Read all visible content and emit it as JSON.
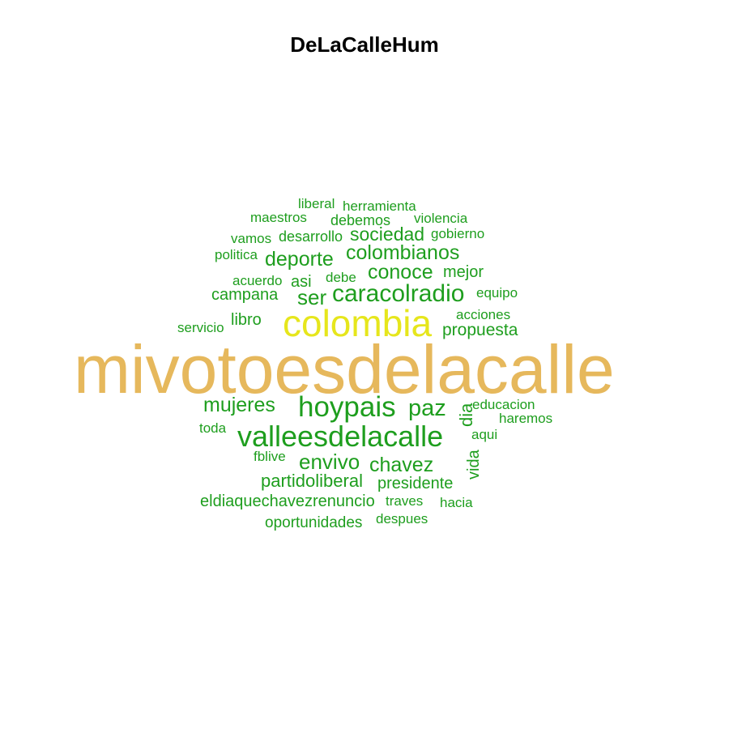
{
  "title": "DeLaCalleHum",
  "words": {
    "mivotoesdelacalle": "mivotoesdelacalle",
    "colombia": "colombia",
    "hoypais": "hoypais",
    "valleesdelacalle": "valleesdelacalle",
    "caracolradio": "caracolradio",
    "colombianos": "colombianos",
    "deporte": "deporte",
    "conoce": "conoce",
    "envivo": "envivo",
    "chavez": "chavez",
    "mujeres": "mujeres",
    "paz": "paz",
    "ser": "ser",
    "sociedad": "sociedad",
    "propuesta": "propuesta",
    "partidoliberal": "partidoliberal",
    "presidente": "presidente",
    "eldiaquechavezrenuncio": "eldiaquechavezrenuncio",
    "oportunidades": "oportunidades",
    "dia": "dia",
    "vida": "vida",
    "liberal": "liberal",
    "herramienta": "herramienta",
    "maestros": "maestros",
    "debemos": "debemos",
    "violencia": "violencia",
    "vamos": "vamos",
    "desarrollo": "desarrollo",
    "gobierno": "gobierno",
    "politica": "politica",
    "mejor": "mejor",
    "acuerdo": "acuerdo",
    "asi": "asi",
    "debe": "debe",
    "campana": "campana",
    "equipo": "equipo",
    "servicio": "servicio",
    "libro": "libro",
    "acciones": "acciones",
    "educacion": "educacion",
    "haremos": "haremos",
    "toda": "toda",
    "aqui": "aqui",
    "fblive": "fblive",
    "traves": "traves",
    "hacia": "hacia",
    "despues": "despues"
  },
  "colors": {
    "primary": "#e6b85c",
    "secondary": "#e6e61c",
    "others": "#1e9e1e"
  }
}
